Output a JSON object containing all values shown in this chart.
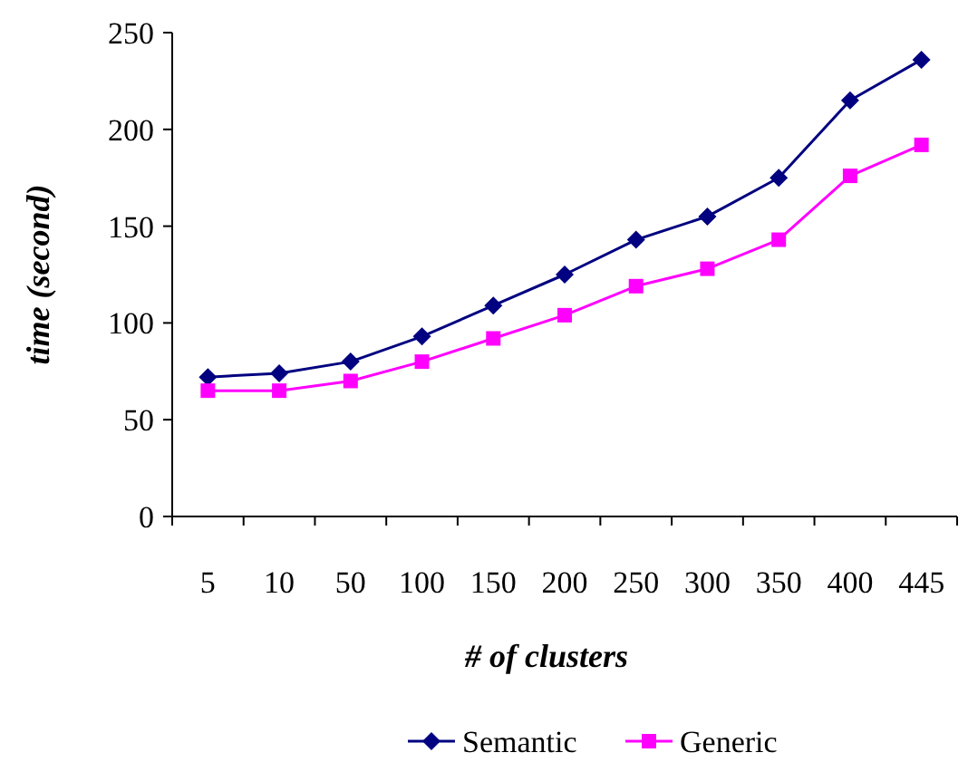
{
  "chart_data": {
    "type": "line",
    "xlabel": "# of clusters",
    "ylabel": "time (second)",
    "categories": [
      "5",
      "10",
      "50",
      "100",
      "150",
      "200",
      "250",
      "300",
      "350",
      "400",
      "445"
    ],
    "series": [
      {
        "name": "Semantic",
        "color": "#000080",
        "marker": "diamond",
        "values": [
          72,
          74,
          80,
          93,
          109,
          125,
          143,
          155,
          175,
          215,
          236
        ]
      },
      {
        "name": "Generic",
        "color": "#ff00ff",
        "marker": "square",
        "values": [
          65,
          65,
          70,
          80,
          92,
          104,
          119,
          128,
          143,
          176,
          192
        ]
      }
    ],
    "ylim": [
      0,
      250
    ],
    "yticks": [
      0,
      50,
      100,
      150,
      200,
      250
    ],
    "grid": false,
    "legend": "bottom"
  }
}
